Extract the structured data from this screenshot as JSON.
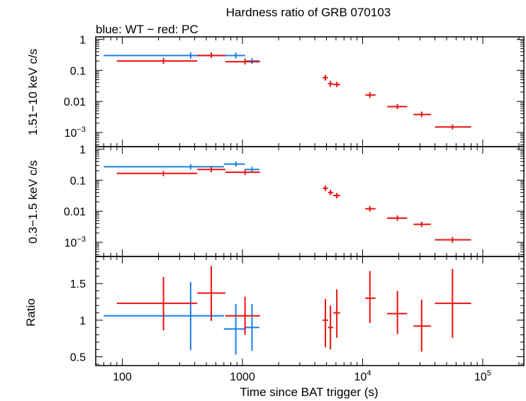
{
  "chart_data": {
    "type": "scatter",
    "title": "Hardness ratio of GRB 070103",
    "subtitle": "blue: WT − red: PC",
    "xlabel": "Time since BAT trigger (s)",
    "xscale": "log",
    "xlim": [
      60,
      220000
    ],
    "x_ticks": [
      {
        "v": 100,
        "label": "100"
      },
      {
        "v": 1000,
        "label": "1000"
      },
      {
        "v": 10000,
        "base": "10",
        "exp": "4"
      },
      {
        "v": 100000,
        "base": "10",
        "exp": "5"
      }
    ],
    "colors": {
      "WT": "#1a7fe6",
      "PC": "#ee1111"
    },
    "panels": [
      {
        "id": "hard",
        "ylabel": "1.51−10 keV c/s",
        "yscale": "log",
        "ylim": [
          0.00035,
          1.2
        ],
        "y_ticks": [
          {
            "v": 1,
            "label": "1"
          },
          {
            "v": 0.1,
            "label": "0.1"
          },
          {
            "v": 0.01,
            "label": "0.01"
          },
          {
            "v": 0.001,
            "base": "10",
            "exp": "−3"
          }
        ],
        "series": [
          {
            "name": "WT",
            "points": [
              {
                "x": 370,
                "xlo": 70,
                "xhi": 700,
                "y": 0.3,
                "ylo": 0.24,
                "yhi": 0.38
              },
              {
                "x": 880,
                "xlo": 700,
                "xhi": 1050,
                "y": 0.3,
                "ylo": 0.24,
                "yhi": 0.38
              },
              {
                "x": 1200,
                "xlo": 1050,
                "xhi": 1380,
                "y": 0.2,
                "ylo": 0.16,
                "yhi": 0.25
              }
            ]
          },
          {
            "name": "PC",
            "points": [
              {
                "x": 220,
                "xlo": 90,
                "xhi": 420,
                "y": 0.2,
                "ylo": 0.16,
                "yhi": 0.25
              },
              {
                "x": 550,
                "xlo": 420,
                "xhi": 720,
                "y": 0.3,
                "ylo": 0.25,
                "yhi": 0.38
              },
              {
                "x": 1050,
                "xlo": 720,
                "xhi": 1400,
                "y": 0.19,
                "ylo": 0.155,
                "yhi": 0.24
              },
              {
                "x": 4900,
                "xlo": 4650,
                "xhi": 5150,
                "y": 0.058,
                "ylo": 0.047,
                "yhi": 0.072
              },
              {
                "x": 5400,
                "xlo": 5150,
                "xhi": 5700,
                "y": 0.037,
                "ylo": 0.03,
                "yhi": 0.046
              },
              {
                "x": 6100,
                "xlo": 5700,
                "xhi": 6500,
                "y": 0.035,
                "ylo": 0.029,
                "yhi": 0.043
              },
              {
                "x": 11500,
                "xlo": 10500,
                "xhi": 12800,
                "y": 0.016,
                "ylo": 0.013,
                "yhi": 0.02
              },
              {
                "x": 19500,
                "xlo": 16000,
                "xhi": 23500,
                "y": 0.0068,
                "ylo": 0.0056,
                "yhi": 0.0083
              },
              {
                "x": 31000,
                "xlo": 26500,
                "xhi": 37000,
                "y": 0.0038,
                "ylo": 0.0031,
                "yhi": 0.0047
              },
              {
                "x": 56000,
                "xlo": 40000,
                "xhi": 80000,
                "y": 0.0015,
                "ylo": 0.00125,
                "yhi": 0.0018
              }
            ]
          }
        ]
      },
      {
        "id": "soft",
        "ylabel": "0.3−1.5 keV c/s",
        "yscale": "log",
        "ylim": [
          0.00035,
          1.2
        ],
        "y_ticks": [
          {
            "v": 1,
            "label": "1"
          },
          {
            "v": 0.1,
            "label": "0.1"
          },
          {
            "v": 0.01,
            "label": "0.01"
          },
          {
            "v": 0.001,
            "base": "10",
            "exp": "−3"
          }
        ],
        "series": [
          {
            "name": "WT",
            "points": [
              {
                "x": 370,
                "xlo": 70,
                "xhi": 700,
                "y": 0.27,
                "ylo": 0.22,
                "yhi": 0.33
              },
              {
                "x": 880,
                "xlo": 700,
                "xhi": 1050,
                "y": 0.33,
                "ylo": 0.27,
                "yhi": 0.4
              },
              {
                "x": 1200,
                "xlo": 1050,
                "xhi": 1380,
                "y": 0.22,
                "ylo": 0.18,
                "yhi": 0.27
              }
            ]
          },
          {
            "name": "PC",
            "points": [
              {
                "x": 220,
                "xlo": 90,
                "xhi": 420,
                "y": 0.165,
                "ylo": 0.135,
                "yhi": 0.2
              },
              {
                "x": 550,
                "xlo": 420,
                "xhi": 720,
                "y": 0.22,
                "ylo": 0.18,
                "yhi": 0.27
              },
              {
                "x": 1050,
                "xlo": 720,
                "xhi": 1400,
                "y": 0.18,
                "ylo": 0.147,
                "yhi": 0.22
              },
              {
                "x": 4900,
                "xlo": 4650,
                "xhi": 5150,
                "y": 0.055,
                "ylo": 0.045,
                "yhi": 0.067
              },
              {
                "x": 5400,
                "xlo": 5150,
                "xhi": 5700,
                "y": 0.04,
                "ylo": 0.033,
                "yhi": 0.049
              },
              {
                "x": 6100,
                "xlo": 5700,
                "xhi": 6500,
                "y": 0.032,
                "ylo": 0.026,
                "yhi": 0.039
              },
              {
                "x": 11500,
                "xlo": 10500,
                "xhi": 12800,
                "y": 0.012,
                "ylo": 0.0098,
                "yhi": 0.0146
              },
              {
                "x": 19500,
                "xlo": 16000,
                "xhi": 23500,
                "y": 0.006,
                "ylo": 0.0049,
                "yhi": 0.0073
              },
              {
                "x": 31000,
                "xlo": 26500,
                "xhi": 37000,
                "y": 0.0038,
                "ylo": 0.0031,
                "yhi": 0.0046
              },
              {
                "x": 56000,
                "xlo": 40000,
                "xhi": 80000,
                "y": 0.0012,
                "ylo": 0.00097,
                "yhi": 0.00148
              }
            ]
          }
        ]
      },
      {
        "id": "ratio",
        "ylabel": "Ratio",
        "yscale": "linear",
        "ylim": [
          0.38,
          1.87
        ],
        "y_ticks": [
          {
            "v": 1.5,
            "label": "1.5"
          },
          {
            "v": 1,
            "label": "1"
          },
          {
            "v": 0.5,
            "label": "0.5"
          }
        ],
        "series": [
          {
            "name": "WT",
            "points": [
              {
                "x": 370,
                "xlo": 70,
                "xhi": 700,
                "y": 1.06,
                "ylo": 0.59,
                "yhi": 1.52
              },
              {
                "x": 880,
                "xlo": 700,
                "xhi": 1050,
                "y": 0.88,
                "ylo": 0.53,
                "yhi": 1.22
              },
              {
                "x": 1200,
                "xlo": 1050,
                "xhi": 1380,
                "y": 0.9,
                "ylo": 0.58,
                "yhi": 1.22
              }
            ]
          },
          {
            "name": "PC",
            "points": [
              {
                "x": 220,
                "xlo": 90,
                "xhi": 420,
                "y": 1.23,
                "ylo": 0.86,
                "yhi": 1.59
              },
              {
                "x": 550,
                "xlo": 420,
                "xhi": 720,
                "y": 1.37,
                "ylo": 0.99,
                "yhi": 1.74
              },
              {
                "x": 1050,
                "xlo": 720,
                "xhi": 1400,
                "y": 1.06,
                "ylo": 0.8,
                "yhi": 1.32
              },
              {
                "x": 4900,
                "xlo": 4650,
                "xhi": 5150,
                "y": 1.0,
                "ylo": 0.63,
                "yhi": 1.29
              },
              {
                "x": 5400,
                "xlo": 5150,
                "xhi": 5700,
                "y": 0.9,
                "ylo": 0.6,
                "yhi": 1.2
              },
              {
                "x": 6100,
                "xlo": 5700,
                "xhi": 6500,
                "y": 1.1,
                "ylo": 0.76,
                "yhi": 1.42
              },
              {
                "x": 11500,
                "xlo": 10500,
                "xhi": 12800,
                "y": 1.3,
                "ylo": 0.96,
                "yhi": 1.67
              },
              {
                "x": 19500,
                "xlo": 16000,
                "xhi": 23500,
                "y": 1.09,
                "ylo": 0.81,
                "yhi": 1.4
              },
              {
                "x": 31000,
                "xlo": 26500,
                "xhi": 37000,
                "y": 0.92,
                "ylo": 0.57,
                "yhi": 1.28
              },
              {
                "x": 56000,
                "xlo": 40000,
                "xhi": 80000,
                "y": 1.23,
                "ylo": 0.76,
                "yhi": 1.7
              }
            ]
          }
        ]
      }
    ]
  }
}
